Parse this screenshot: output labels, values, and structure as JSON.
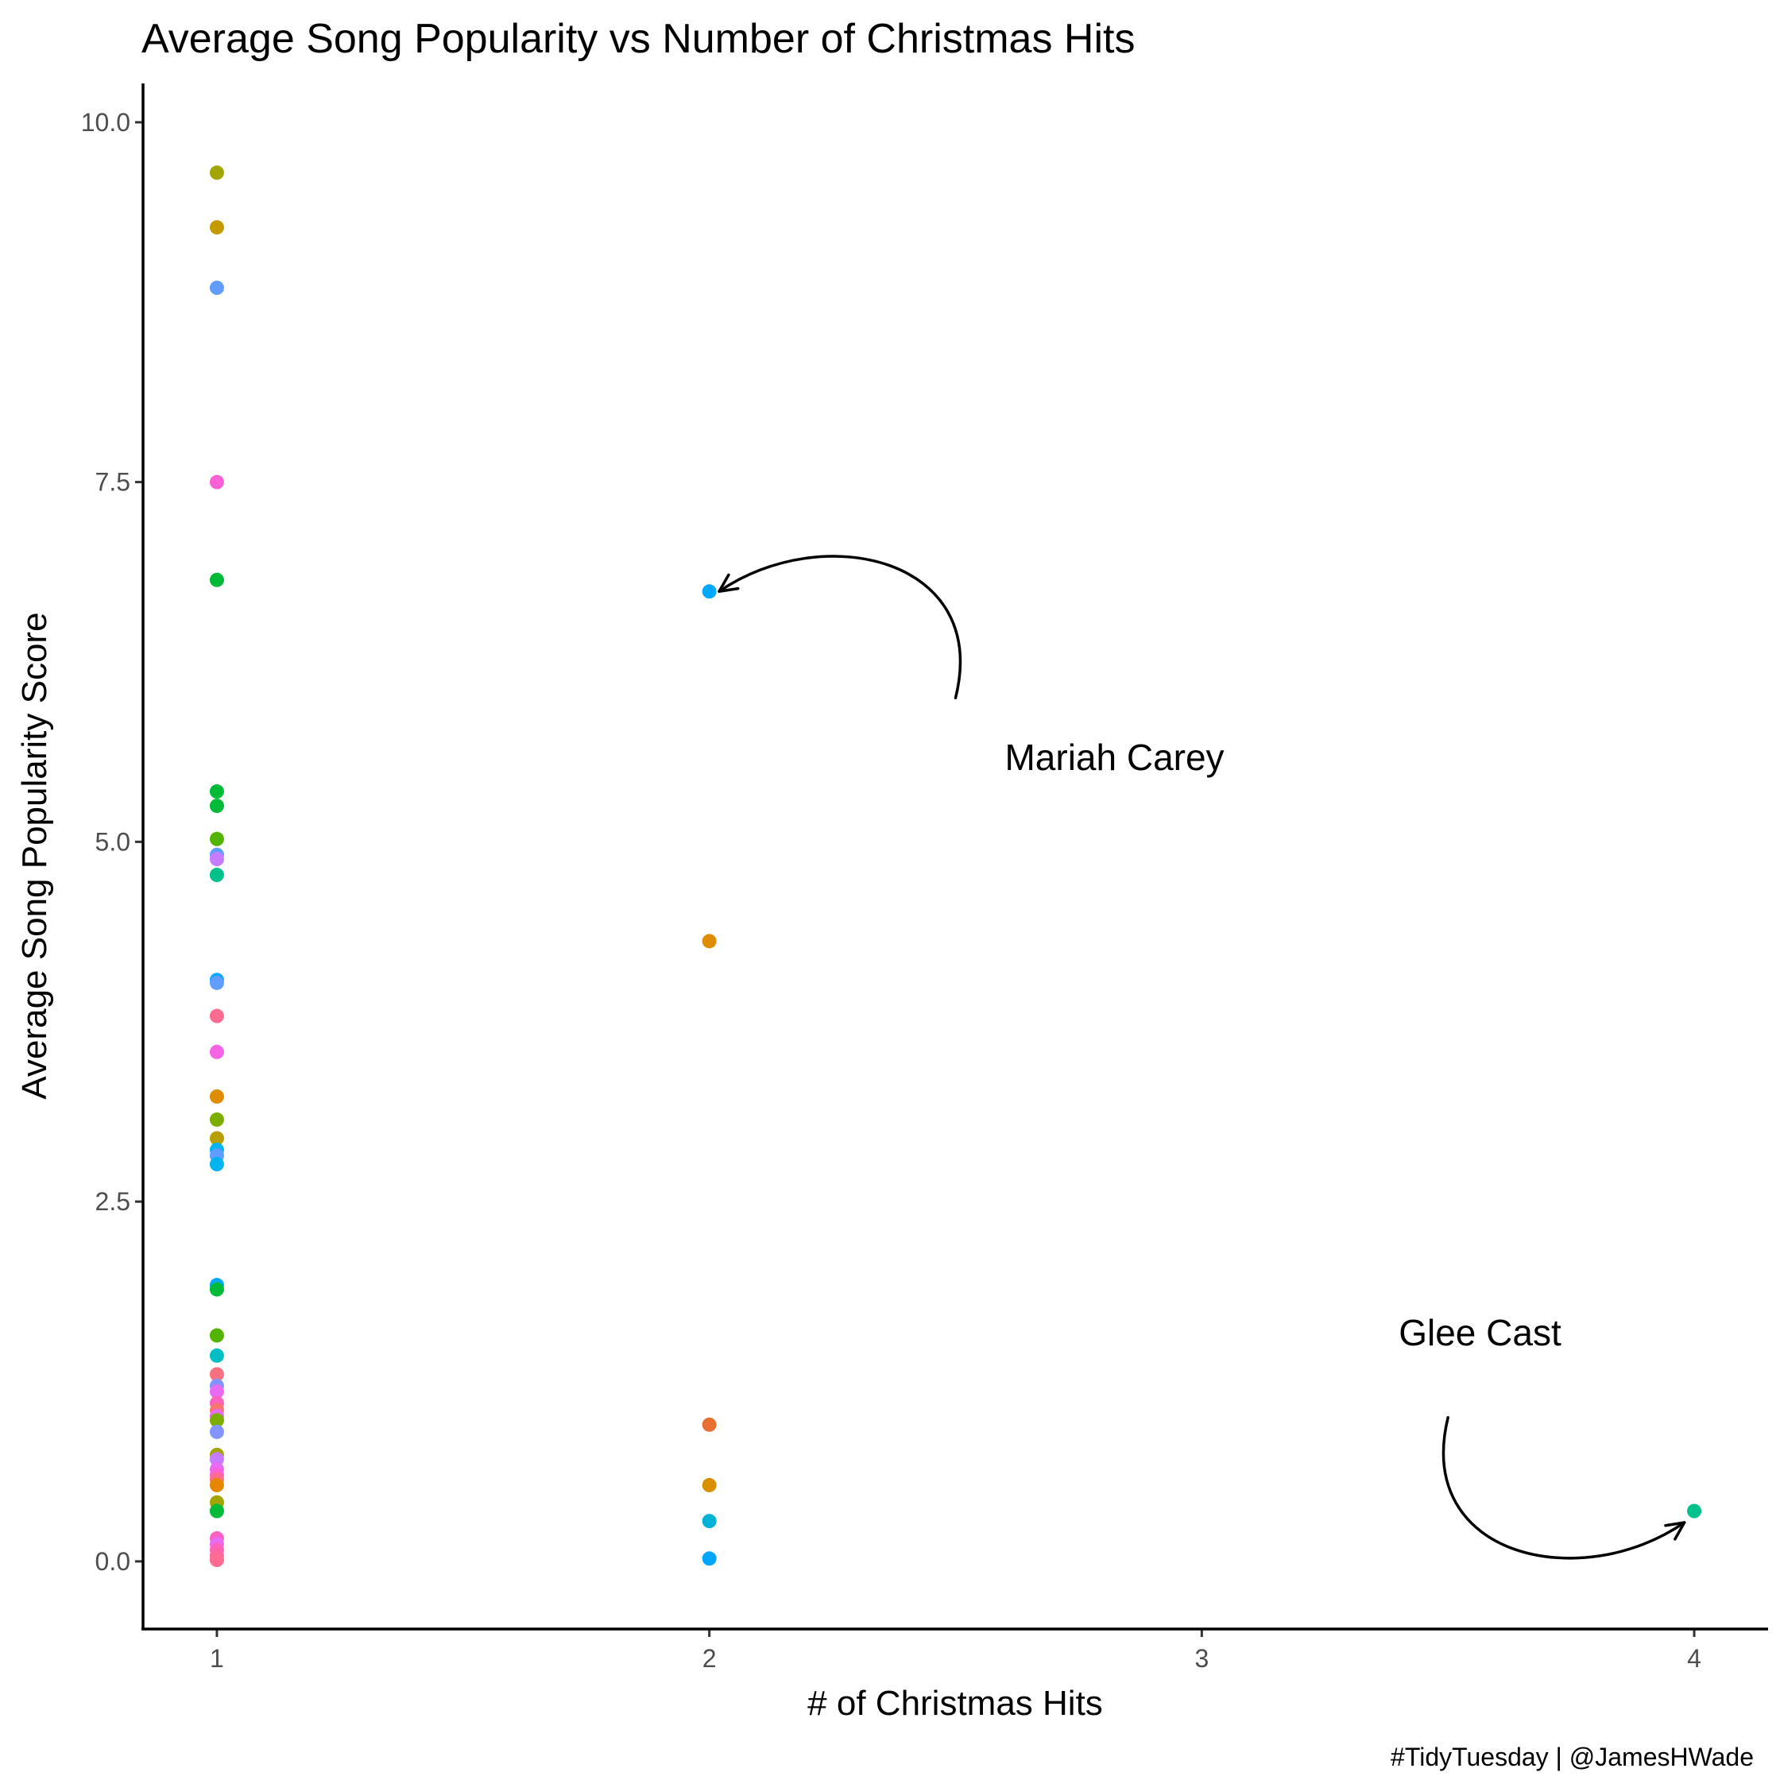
{
  "chart_data": {
    "type": "scatter",
    "title": "Average Song Popularity vs Number of Christmas Hits",
    "xlabel": "# of Christmas Hits",
    "ylabel": "Average Song Popularity Score",
    "caption": "#TidyTuesday | @JamesHWade",
    "xlim": [
      0.85,
      4.15
    ],
    "ylim": [
      -0.47,
      10.27
    ],
    "x_ticks": [
      1,
      2,
      3,
      4
    ],
    "x_tick_labels": [
      "1",
      "2",
      "3",
      "4"
    ],
    "y_ticks": [
      0,
      2.5,
      5,
      7.5,
      10
    ],
    "y_tick_labels": [
      "0.0",
      "2.5",
      "5.0",
      "7.5",
      "10.0"
    ],
    "grid": false,
    "legend": "none",
    "annotations": [
      {
        "text": "Mariah Carey",
        "x": 2.6,
        "y": 5.5,
        "arrow_from": [
          2.5,
          6.0
        ],
        "arrow_to": [
          2.02,
          6.74
        ]
      },
      {
        "text": "Glee Cast",
        "x": 3.4,
        "y": 1.5,
        "arrow_from": [
          3.5,
          1.0
        ],
        "arrow_to": [
          3.98,
          0.27
        ]
      }
    ],
    "points": [
      {
        "x": 1,
        "y": 9.65,
        "color": "#a3a500"
      },
      {
        "x": 1,
        "y": 9.27,
        "color": "#c49a00"
      },
      {
        "x": 1,
        "y": 8.85,
        "color": "#619cff"
      },
      {
        "x": 1,
        "y": 7.5,
        "color": "#fb61d7"
      },
      {
        "x": 1,
        "y": 6.82,
        "color": "#00ba38"
      },
      {
        "x": 1,
        "y": 5.35,
        "color": "#00ba38"
      },
      {
        "x": 1,
        "y": 5.25,
        "color": "#00ba38"
      },
      {
        "x": 1,
        "y": 5.02,
        "color": "#53b400"
      },
      {
        "x": 1,
        "y": 4.91,
        "color": "#619cff"
      },
      {
        "x": 1,
        "y": 4.88,
        "color": "#c77cff"
      },
      {
        "x": 1,
        "y": 4.77,
        "color": "#00c08b"
      },
      {
        "x": 1,
        "y": 4.04,
        "color": "#00a9ff"
      },
      {
        "x": 1,
        "y": 4.02,
        "color": "#619cff"
      },
      {
        "x": 1,
        "y": 3.79,
        "color": "#ff6c91"
      },
      {
        "x": 1,
        "y": 3.54,
        "color": "#f564e3"
      },
      {
        "x": 1,
        "y": 3.23,
        "color": "#de8c00"
      },
      {
        "x": 1,
        "y": 3.07,
        "color": "#7cae00"
      },
      {
        "x": 1,
        "y": 2.94,
        "color": "#b79f00"
      },
      {
        "x": 1,
        "y": 2.86,
        "color": "#00b4f0"
      },
      {
        "x": 1,
        "y": 2.82,
        "color": "#619cff"
      },
      {
        "x": 1,
        "y": 2.76,
        "color": "#00b4f0"
      },
      {
        "x": 1,
        "y": 1.92,
        "color": "#00a9ff"
      },
      {
        "x": 1,
        "y": 1.89,
        "color": "#00ba38"
      },
      {
        "x": 1,
        "y": 1.57,
        "color": "#53b400"
      },
      {
        "x": 1,
        "y": 1.43,
        "color": "#00bfc4"
      },
      {
        "x": 1,
        "y": 1.3,
        "color": "#fc717f"
      },
      {
        "x": 1,
        "y": 1.22,
        "color": "#8494ff"
      },
      {
        "x": 1,
        "y": 1.18,
        "color": "#e76bf3"
      },
      {
        "x": 1,
        "y": 1.1,
        "color": "#ff62bc"
      },
      {
        "x": 1,
        "y": 1.05,
        "color": "#f8766d"
      },
      {
        "x": 1,
        "y": 1.01,
        "color": "#e76bf3"
      },
      {
        "x": 1,
        "y": 0.98,
        "color": "#7cae00"
      },
      {
        "x": 1,
        "y": 0.9,
        "color": "#8494ff"
      },
      {
        "x": 1,
        "y": 0.74,
        "color": "#a3a500"
      },
      {
        "x": 1,
        "y": 0.71,
        "color": "#c77cff"
      },
      {
        "x": 1,
        "y": 0.64,
        "color": "#e76bf3"
      },
      {
        "x": 1,
        "y": 0.6,
        "color": "#fb61d7"
      },
      {
        "x": 1,
        "y": 0.57,
        "color": "#ff6c91"
      },
      {
        "x": 1,
        "y": 0.53,
        "color": "#e58700"
      },
      {
        "x": 1,
        "y": 0.41,
        "color": "#a3a500"
      },
      {
        "x": 1,
        "y": 0.35,
        "color": "#00ba38"
      },
      {
        "x": 1,
        "y": 0.16,
        "color": "#ff61c3"
      },
      {
        "x": 1,
        "y": 0.12,
        "color": "#e76bf3"
      },
      {
        "x": 1,
        "y": 0.08,
        "color": "#ff62bc"
      },
      {
        "x": 1,
        "y": 0.04,
        "color": "#ff67a4"
      },
      {
        "x": 1,
        "y": 0.01,
        "color": "#ff6c91"
      },
      {
        "x": 2,
        "y": 6.74,
        "color": "#00a9ff"
      },
      {
        "x": 2,
        "y": 4.31,
        "color": "#de8c00"
      },
      {
        "x": 2,
        "y": 0.95,
        "color": "#e76f32"
      },
      {
        "x": 2,
        "y": 0.53,
        "color": "#d89000"
      },
      {
        "x": 2,
        "y": 0.28,
        "color": "#00b2d5"
      },
      {
        "x": 2,
        "y": 0.02,
        "color": "#00a5ff"
      },
      {
        "x": 4,
        "y": 0.35,
        "color": "#00c08b"
      }
    ]
  }
}
